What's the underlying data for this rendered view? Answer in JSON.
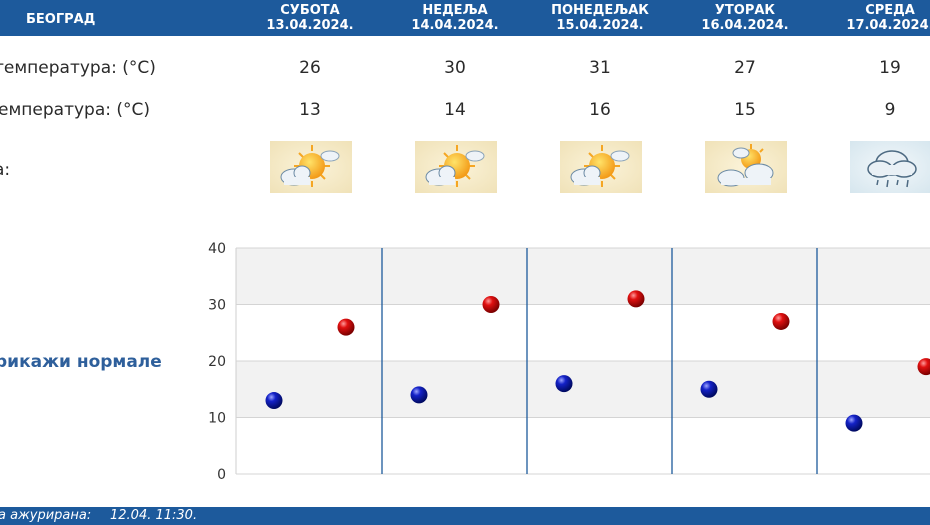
{
  "header": {
    "city": "БЕОГРАД",
    "days": [
      {
        "name": "СУБОТА",
        "date": "13.04.2024."
      },
      {
        "name": "НЕДЕЉА",
        "date": "14.04.2024."
      },
      {
        "name": "ПОНЕДЕЉАК",
        "date": "15.04.2024."
      },
      {
        "name": "УТОРАК",
        "date": "16.04.2024."
      },
      {
        "name": "СРЕДА",
        "date": "17.04.2024."
      }
    ]
  },
  "rows": {
    "max_label": "температура: (°C)",
    "min_label": "емпература: (°C)",
    "weather_label": "а:"
  },
  "weather_icons": [
    "partly-sunny-icon",
    "partly-sunny-icon",
    "partly-sunny-icon",
    "cloudy-with-sun-icon",
    "rain-cloud-icon"
  ],
  "normals_link": "рикажи нормале",
  "footer": {
    "updated_label": "а ажурирана:",
    "updated_value": "12.04.  11:30."
  },
  "colors": {
    "header_bg": "#1d5a9c",
    "max_dot": "#cc0000",
    "min_dot": "#0a14b4",
    "divider": "#1d5a9c"
  },
  "chart_data": {
    "type": "scatter",
    "categories": [
      "13.04.2024.",
      "14.04.2024.",
      "15.04.2024.",
      "16.04.2024.",
      "17.04.2024."
    ],
    "series": [
      {
        "values": [
          26,
          30,
          31,
          27,
          19
        ]
      },
      {
        "values": [
          13,
          14,
          16,
          15,
          9
        ]
      }
    ],
    "ylim": [
      0,
      40
    ],
    "yticks": [
      "0",
      "10",
      "20",
      "30",
      "40"
    ],
    "grid": true
  }
}
